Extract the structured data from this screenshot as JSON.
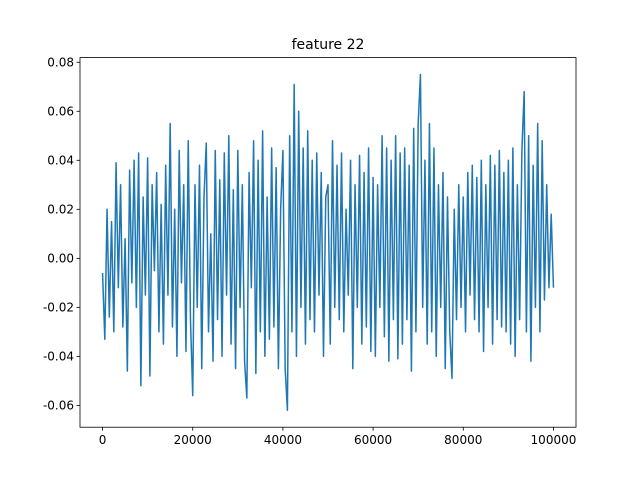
{
  "chart_data": {
    "type": "line",
    "title": "feature 22",
    "x": [
      0,
      500,
      1000,
      1500,
      2000,
      2500,
      3000,
      3500,
      4000,
      4500,
      5000,
      5500,
      6000,
      6500,
      7000,
      7500,
      8000,
      8500,
      9000,
      9500,
      10000,
      10500,
      11000,
      11500,
      12000,
      12500,
      13000,
      13500,
      14000,
      14500,
      15000,
      15500,
      16000,
      16500,
      17000,
      17500,
      18000,
      18500,
      19000,
      19500,
      20000,
      20500,
      21000,
      21500,
      22000,
      22500,
      23000,
      23500,
      24000,
      24500,
      25000,
      25500,
      26000,
      26500,
      27000,
      27500,
      28000,
      28500,
      29000,
      29500,
      30000,
      30500,
      31000,
      31500,
      32000,
      32500,
      33000,
      33500,
      34000,
      34500,
      35000,
      35500,
      36000,
      36500,
      37000,
      37500,
      38000,
      38500,
      39000,
      39500,
      40000,
      40500,
      41000,
      41500,
      42000,
      42500,
      43000,
      43500,
      44000,
      44500,
      45000,
      45500,
      46000,
      46500,
      47000,
      47500,
      48000,
      48500,
      49000,
      49500,
      50000,
      50500,
      51000,
      51500,
      52000,
      52500,
      53000,
      53500,
      54000,
      54500,
      55000,
      55500,
      56000,
      56500,
      57000,
      57500,
      58000,
      58500,
      59000,
      59500,
      60000,
      60500,
      61000,
      61500,
      62000,
      62500,
      63000,
      63500,
      64000,
      64500,
      65000,
      65500,
      66000,
      66500,
      67000,
      67500,
      68000,
      68500,
      69000,
      69500,
      70000,
      70500,
      71000,
      71500,
      72000,
      72500,
      73000,
      73500,
      74000,
      74500,
      75000,
      75500,
      76000,
      76500,
      77000,
      77500,
      78000,
      78500,
      79000,
      79500,
      80000,
      80500,
      81000,
      81500,
      82000,
      82500,
      83000,
      83500,
      84000,
      84500,
      85000,
      85500,
      86000,
      86500,
      87000,
      87500,
      88000,
      88500,
      89000,
      89500,
      90000,
      90500,
      91000,
      91500,
      92000,
      92500,
      93000,
      93500,
      94000,
      94500,
      95000,
      95500,
      96000,
      96500,
      97000,
      97500,
      98000,
      98500,
      99000,
      99500,
      100000
    ],
    "series": [
      {
        "color": "#1f77b4",
        "values": [
          -0.006,
          -0.033,
          0.02,
          -0.024,
          0.015,
          -0.03,
          0.039,
          -0.012,
          0.03,
          -0.028,
          0.008,
          -0.046,
          0.036,
          -0.01,
          0.04,
          -0.02,
          0.043,
          -0.052,
          0.025,
          -0.015,
          0.041,
          -0.048,
          0.03,
          -0.005,
          0.035,
          -0.03,
          0.022,
          -0.035,
          0.038,
          -0.015,
          0.055,
          -0.028,
          0.02,
          -0.04,
          0.044,
          -0.01,
          0.03,
          -0.038,
          0.048,
          -0.025,
          -0.056,
          0.03,
          -0.02,
          0.038,
          -0.045,
          0.025,
          0.047,
          -0.03,
          0.01,
          -0.042,
          0.044,
          -0.025,
          0.032,
          -0.04,
          0.043,
          -0.015,
          0.05,
          -0.035,
          0.028,
          -0.045,
          0.044,
          -0.02,
          0.03,
          -0.042,
          -0.057,
          0.035,
          -0.012,
          0.048,
          -0.047,
          0.04,
          -0.03,
          0.052,
          -0.04,
          0.025,
          -0.033,
          0.045,
          -0.028,
          0.037,
          -0.045,
          0.02,
          0.044,
          -0.045,
          -0.062,
          0.05,
          -0.03,
          0.071,
          -0.04,
          0.06,
          -0.02,
          0.045,
          -0.035,
          0.052,
          -0.025,
          0.04,
          -0.03,
          0.043,
          -0.015,
          0.035,
          -0.04,
          0.025,
          0.03,
          -0.035,
          0.048,
          -0.02,
          0.038,
          -0.025,
          0.043,
          -0.03,
          0.02,
          -0.015,
          0.04,
          -0.045,
          0.03,
          -0.02,
          0.042,
          -0.035,
          0.035,
          -0.028,
          0.045,
          -0.038,
          0.033,
          -0.04,
          0.03,
          -0.02,
          0.05,
          -0.032,
          0.045,
          -0.042,
          0.04,
          -0.025,
          0.05,
          -0.041,
          0.043,
          -0.035,
          0.045,
          -0.025,
          0.038,
          -0.046,
          0.053,
          -0.03,
          0.055,
          0.075,
          -0.02,
          0.04,
          -0.035,
          0.055,
          -0.03,
          0.045,
          -0.04,
          0.03,
          -0.02,
          0.035,
          -0.045,
          0.025,
          -0.03,
          -0.049,
          0.02,
          -0.025,
          0.03,
          -0.02,
          0.025,
          -0.03,
          0.035,
          -0.015,
          0.038,
          -0.025,
          0.033,
          -0.03,
          0.04,
          -0.038,
          0.03,
          -0.02,
          0.042,
          -0.035,
          0.038,
          -0.025,
          0.044,
          -0.028,
          0.035,
          -0.03,
          0.04,
          -0.035,
          0.045,
          -0.04,
          0.03,
          -0.025,
          0.044,
          0.068,
          -0.03,
          0.05,
          -0.042,
          0.038,
          -0.02,
          0.055,
          -0.03,
          0.048,
          -0.017,
          0.03,
          -0.012,
          0.018,
          -0.012
        ]
      }
    ],
    "xlim": [
      -5000,
      105000
    ],
    "xticks": [
      0,
      20000,
      40000,
      60000,
      80000,
      100000
    ],
    "ylim": [
      -0.0689,
      0.0819
    ],
    "yticks": [
      {
        "value": -0.06,
        "label": "-0.06"
      },
      {
        "value": -0.04,
        "label": "-0.04"
      },
      {
        "value": -0.02,
        "label": "-0.02"
      },
      {
        "value": 0,
        "label": "0.00"
      },
      {
        "value": 0.02,
        "label": "0.02"
      },
      {
        "value": 0.04,
        "label": "0.04"
      },
      {
        "value": 0.06,
        "label": "0.06"
      },
      {
        "value": 0.08,
        "label": "0.08"
      }
    ]
  }
}
